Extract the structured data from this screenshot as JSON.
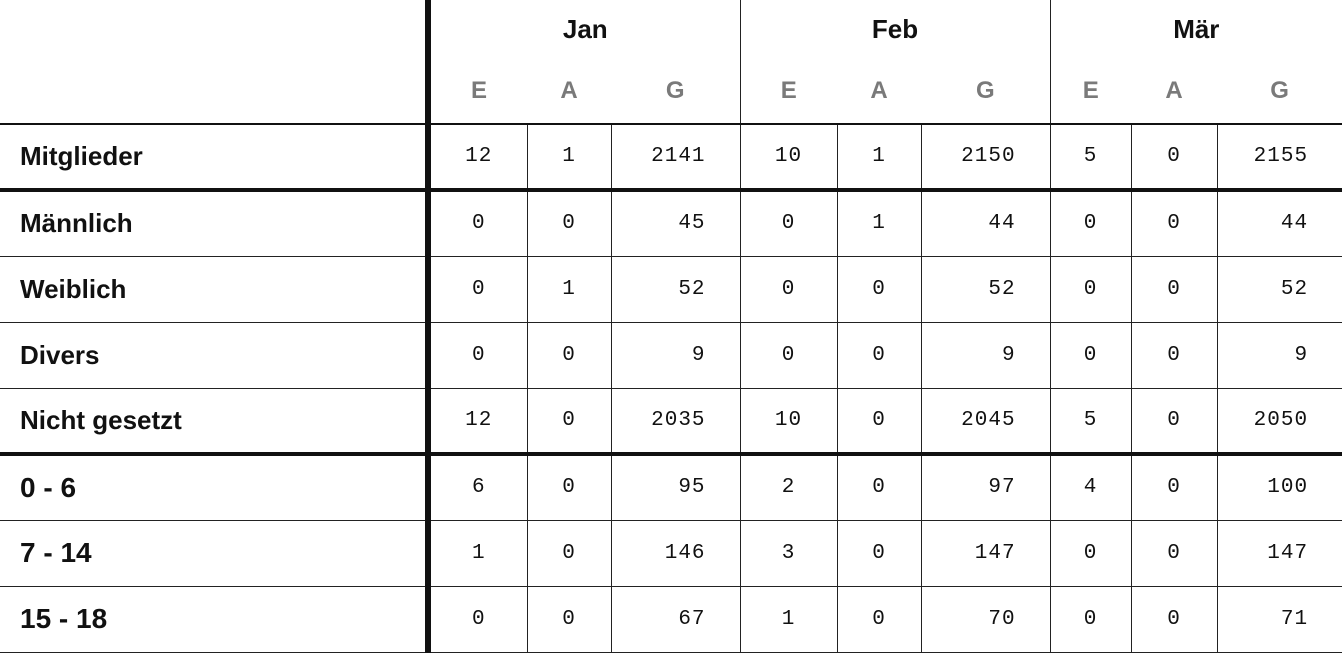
{
  "months": [
    "Jan",
    "Feb",
    "Mär"
  ],
  "sub_headers": [
    "E",
    "A",
    "G"
  ],
  "rows": [
    {
      "label": "Mitglieder",
      "values": [
        "12",
        "1",
        "2141",
        "10",
        "1",
        "2150",
        "5",
        "0",
        "2155"
      ]
    },
    {
      "label": "Männlich",
      "values": [
        "0",
        "0",
        "45",
        "0",
        "1",
        "44",
        "0",
        "0",
        "44"
      ]
    },
    {
      "label": "Weiblich",
      "values": [
        "0",
        "1",
        "52",
        "0",
        "0",
        "52",
        "0",
        "0",
        "52"
      ]
    },
    {
      "label": "Divers",
      "values": [
        "0",
        "0",
        "9",
        "0",
        "0",
        "9",
        "0",
        "0",
        "9"
      ]
    },
    {
      "label": "Nicht gesetzt",
      "values": [
        "12",
        "0",
        "2035",
        "10",
        "0",
        "2045",
        "5",
        "0",
        "2050"
      ]
    },
    {
      "label": "0 - 6",
      "values": [
        "6",
        "0",
        "95",
        "2",
        "0",
        "97",
        "4",
        "0",
        "100"
      ]
    },
    {
      "label": "7 - 14",
      "values": [
        "1",
        "0",
        "146",
        "3",
        "0",
        "147",
        "0",
        "0",
        "147"
      ]
    },
    {
      "label": "15 - 18",
      "values": [
        "0",
        "0",
        "67",
        "1",
        "0",
        "70",
        "0",
        "0",
        "71"
      ]
    }
  ]
}
